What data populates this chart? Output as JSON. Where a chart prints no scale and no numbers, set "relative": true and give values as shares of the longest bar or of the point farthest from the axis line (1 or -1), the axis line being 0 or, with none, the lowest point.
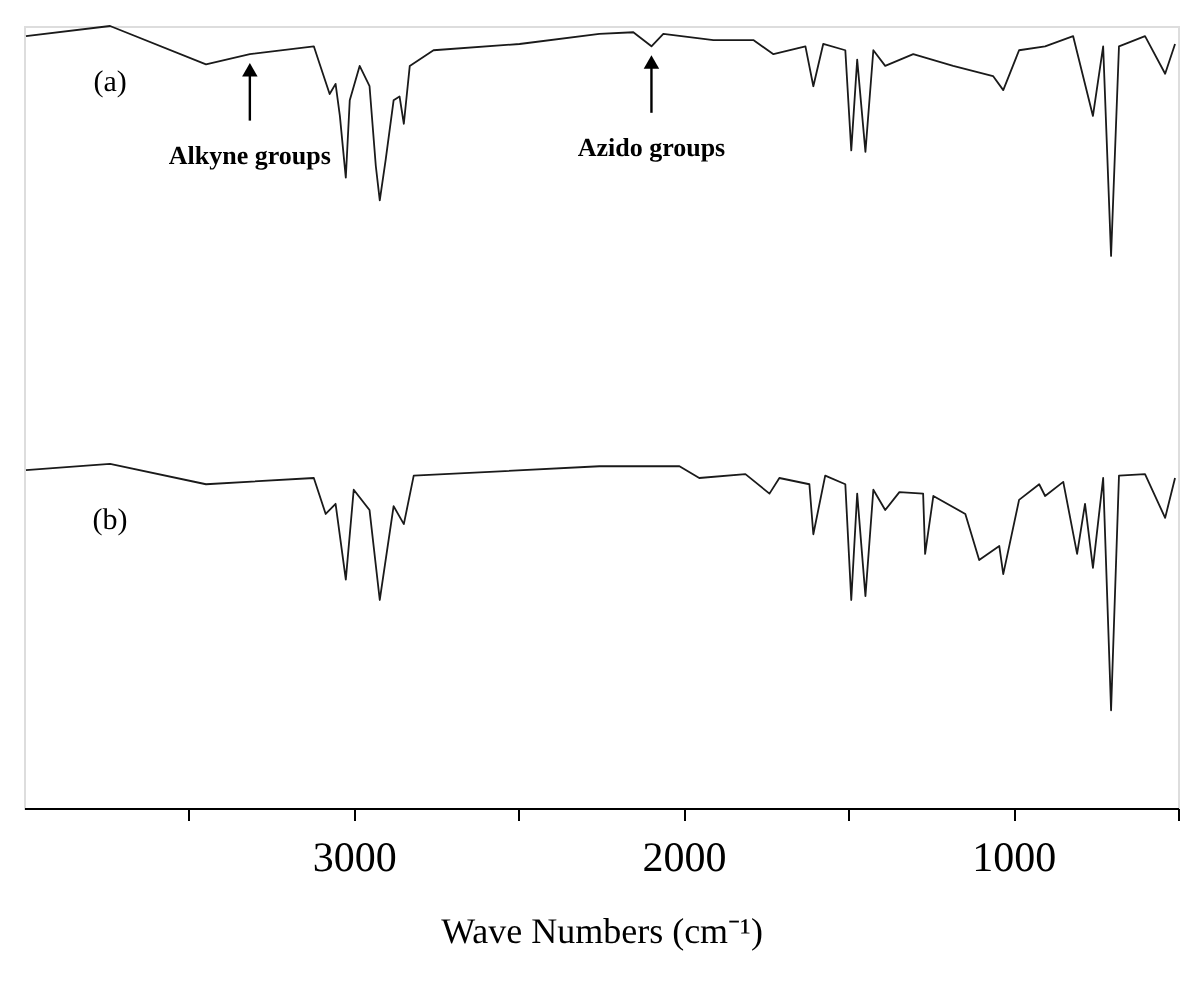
{
  "chart_data": {
    "type": "line",
    "relative": true,
    "xlabel": "Wave Numbers (cm⁻¹)",
    "xlim": [
      4000,
      500
    ],
    "xticks": [
      {
        "value": 3500,
        "label": null
      },
      3000,
      {
        "value": 2500,
        "label": null
      },
      2000,
      {
        "value": 1500,
        "label": null
      },
      1000,
      {
        "value": 500,
        "label": null
      }
    ],
    "grid": false,
    "line_style": "solid",
    "marker": "none",
    "annotations": [
      {
        "text": "Alkyne groups",
        "x": 3315,
        "y": 0.964
      },
      {
        "text": "Azido groups",
        "x": 2097,
        "y": 0.974
      }
    ],
    "series": [
      {
        "name": "(a)",
        "color": "#1a1a1a",
        "x": [
          3994,
          3739,
          3448,
          3315,
          3121,
          3103,
          3073,
          3055,
          3042,
          3024,
          3012,
          2982,
          2952,
          2933,
          2921,
          2903,
          2879,
          2861,
          2848,
          2830,
          2758,
          2497,
          2255,
          2152,
          2097,
          2061,
          1909,
          1788,
          1727,
          1630,
          1606,
          1576,
          1509,
          1491,
          1473,
          1448,
          1424,
          1388,
          1303,
          1182,
          1061,
          1030,
          982,
          903,
          818,
          758,
          727,
          703,
          679,
          600,
          539,
          509
        ],
        "values": [
          0.987,
          1.0,
          0.951,
          0.964,
          0.974,
          0.951,
          0.913,
          0.926,
          0.885,
          0.806,
          0.905,
          0.949,
          0.923,
          0.821,
          0.777,
          0.829,
          0.905,
          0.91,
          0.875,
          0.949,
          0.969,
          0.977,
          0.99,
          0.992,
          0.974,
          0.99,
          0.982,
          0.982,
          0.964,
          0.974,
          0.923,
          0.977,
          0.969,
          0.841,
          0.957,
          0.839,
          0.969,
          0.949,
          0.964,
          0.949,
          0.936,
          0.918,
          0.969,
          0.974,
          0.987,
          0.885,
          0.974,
          0.706,
          0.974,
          0.987,
          0.939,
          0.977
        ]
      },
      {
        "name": "(b)",
        "color": "#1a1a1a",
        "x": [
          3994,
          3739,
          3448,
          3121,
          3085,
          3055,
          3024,
          3000,
          2952,
          2921,
          2879,
          2848,
          2818,
          2255,
          2012,
          1952,
          1812,
          1739,
          1709,
          1618,
          1606,
          1570,
          1509,
          1491,
          1473,
          1448,
          1424,
          1388,
          1345,
          1273,
          1267,
          1242,
          1145,
          1103,
          1042,
          1030,
          982,
          921,
          903,
          848,
          806,
          782,
          758,
          727,
          703,
          679,
          600,
          539,
          509
        ],
        "values": [
          0.432,
          0.44,
          0.414,
          0.422,
          0.376,
          0.389,
          0.292,
          0.407,
          0.381,
          0.266,
          0.386,
          0.363,
          0.425,
          0.437,
          0.437,
          0.422,
          0.427,
          0.402,
          0.422,
          0.414,
          0.35,
          0.425,
          0.414,
          0.266,
          0.402,
          0.271,
          0.407,
          0.381,
          0.404,
          0.402,
          0.325,
          0.399,
          0.376,
          0.317,
          0.335,
          0.299,
          0.394,
          0.414,
          0.399,
          0.417,
          0.325,
          0.389,
          0.307,
          0.422,
          0.125,
          0.425,
          0.427,
          0.371,
          0.422
        ]
      }
    ]
  }
}
